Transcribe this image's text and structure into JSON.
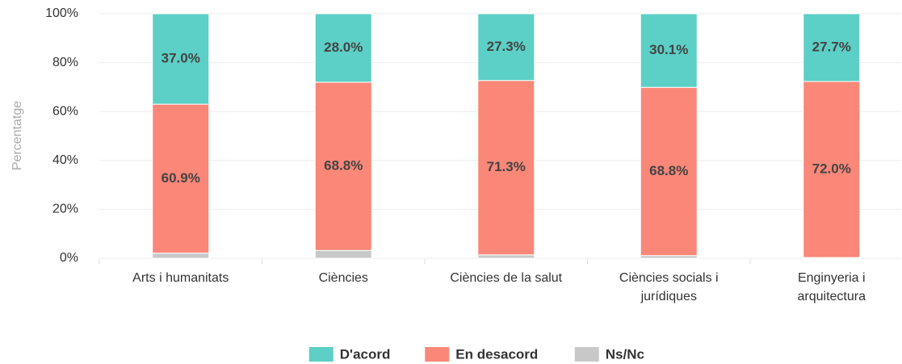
{
  "chart_data": {
    "type": "bar",
    "stacked": true,
    "y_label": "Percentatge",
    "categories": [
      "Arts i humanitats",
      "Ciències",
      "Ciències de la salut",
      "Ciències socials i jurídiques",
      "Enginyeria i arquitectura"
    ],
    "series": [
      {
        "name": "Ns/Nc",
        "color": "#c8c8c8",
        "values": [
          2.1,
          3.2,
          1.4,
          1.1,
          0.3
        ]
      },
      {
        "name": "En desacord",
        "color": "#fa8778",
        "values": [
          60.9,
          68.8,
          71.3,
          68.8,
          72.0
        ],
        "value_labels": [
          "60.9%",
          "68.8%",
          "71.3%",
          "68.8%",
          "72.0%"
        ]
      },
      {
        "name": "D'acord",
        "color": "#5ccfc6",
        "values": [
          37.0,
          28.0,
          27.3,
          30.1,
          27.7
        ],
        "value_labels": [
          "37.0%",
          "28.0%",
          "27.3%",
          "30.1%",
          "27.7%"
        ]
      }
    ],
    "legend_order": [
      2,
      1,
      0
    ],
    "ylim": [
      0,
      100
    ],
    "yticks": [
      {
        "value": 0,
        "label": "0%"
      },
      {
        "value": 20,
        "label": "20%"
      },
      {
        "value": 40,
        "label": "40%"
      },
      {
        "value": 60,
        "label": "60%"
      },
      {
        "value": 80,
        "label": "80%"
      },
      {
        "value": 100,
        "label": "100%"
      }
    ],
    "grid": true
  }
}
